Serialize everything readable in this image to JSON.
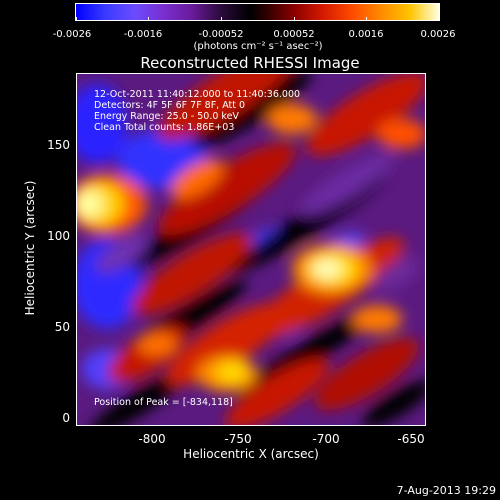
{
  "colorbar": {
    "ticks": [
      "-0.0026",
      "-0.0016",
      "-0.00052",
      "0.00052",
      "0.0016",
      "0.0026"
    ],
    "unit": "(photons cm⁻² s⁻¹ asec⁻²)"
  },
  "title": "Reconstructed RHESSI Image",
  "info": {
    "line1": "12-Oct-2011 11:40:12.000 to 11:40:36.000",
    "line2": "Detectors: 4F 5F 6F 7F 8F, Att 0",
    "line3": "Energy Range: 25.0 - 50.0 keV",
    "line4": "Clean     Total counts: 1.86E+03"
  },
  "peak_text": "Position of Peak = [-834,118]",
  "axes": {
    "xlabel": "Heliocentric X (arcsec)",
    "ylabel": "Heliocentric Y (arcsec)",
    "x_ticks": [
      "-800",
      "-750",
      "-700",
      "-650"
    ],
    "y_ticks": [
      "150",
      "100",
      "50",
      "0"
    ]
  },
  "footer": {
    "date": "7-Aug-2013 19:29"
  },
  "colors": {
    "background": "#000000",
    "text": "#ffffff"
  }
}
